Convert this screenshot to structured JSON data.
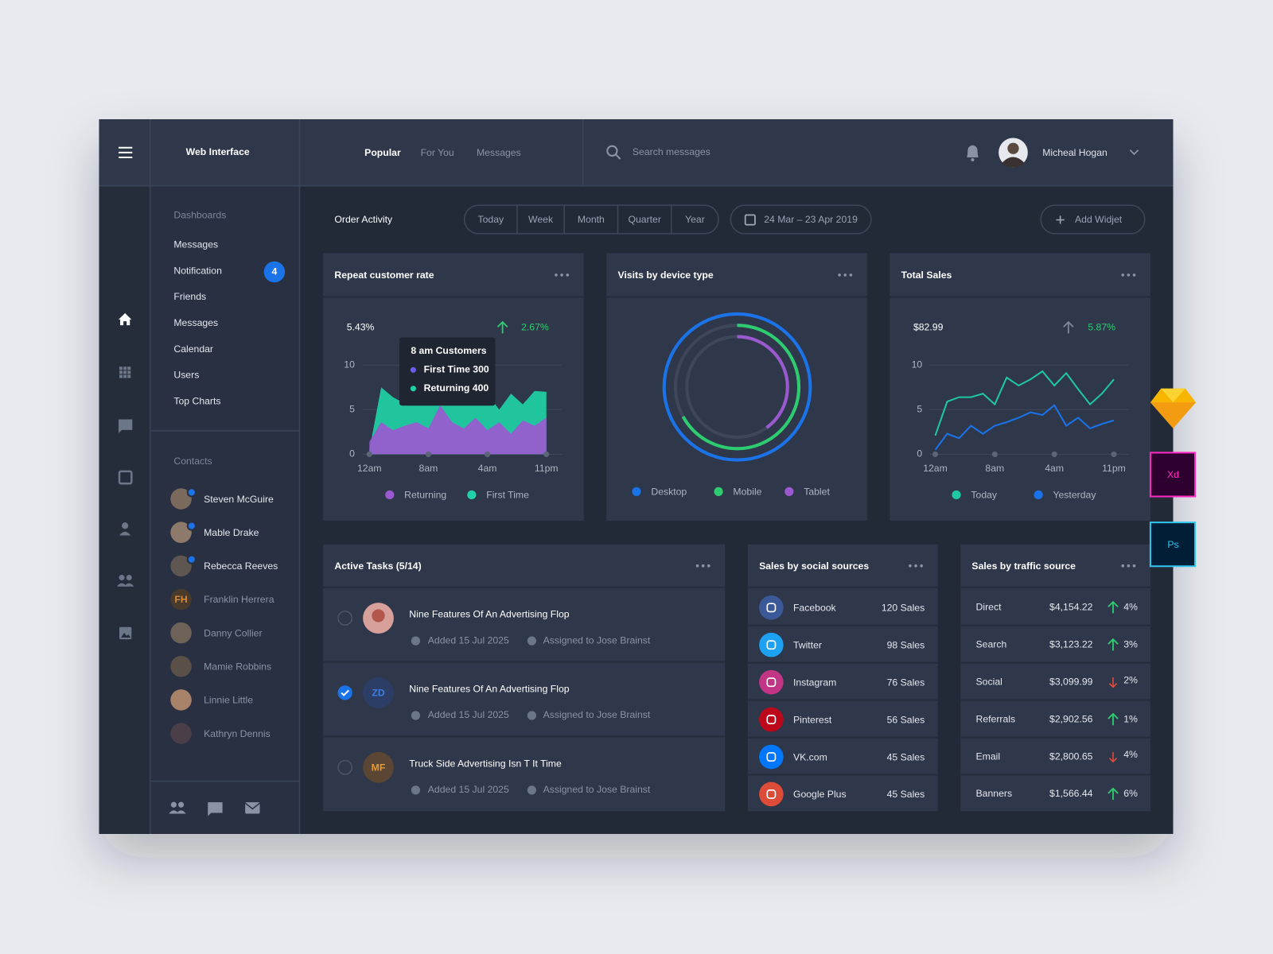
{
  "top_bar": {
    "brand": "Web Interface",
    "tabs": [
      "Popular",
      "For You",
      "Messages"
    ],
    "active_tab": 0,
    "search_placeholder": "Search messages",
    "user_name": "Micheal Hogan"
  },
  "navigation": {
    "section_title": "Dashboards",
    "items": [
      "Messages",
      "Notification",
      "Friends",
      "Messages",
      "Calendar",
      "Users",
      "Top Charts"
    ],
    "badge": {
      "item": 1,
      "count": 4
    }
  },
  "contacts": {
    "title": "Contacts",
    "people": [
      {
        "name": "Steven McGuire",
        "online": true
      },
      {
        "name": "Mable Drake",
        "online": true
      },
      {
        "name": "Rebecca Reeves",
        "online": true
      },
      {
        "name": "Franklin Herrera",
        "online": false,
        "initials": "FH"
      },
      {
        "name": "Danny Collier",
        "online": false
      },
      {
        "name": "Mamie Robbins",
        "online": false
      },
      {
        "name": "Linnie Little",
        "online": false
      },
      {
        "name": "Kathryn Dennis",
        "online": false
      }
    ]
  },
  "header": {
    "title": "Order Activity",
    "ranges": [
      "Today",
      "Week",
      "Month",
      "Quarter",
      "Year"
    ],
    "date_range": "24 Mar – 23 Apr 2019",
    "add_widget": "Add Widjet"
  },
  "repeat_customer_rate": {
    "title": "Repeat customer rate",
    "value": "5.43%",
    "change": "2.67%",
    "tooltip": {
      "title": "8 am Customers",
      "items": [
        {
          "label": "First Time 300",
          "color": "#6c5ce7"
        },
        {
          "label": "Returning 400",
          "color": "#1fd1a5"
        }
      ]
    },
    "chart": {
      "type": "area",
      "categories": [
        "12am",
        null,
        null,
        null,
        null,
        "8am",
        null,
        null,
        null,
        null,
        "4am",
        null,
        null,
        null,
        null,
        "11pm"
      ],
      "series": [
        {
          "name": "Returning",
          "color": "#9b59d0",
          "values": [
            1.4,
            3.6,
            2.7,
            3.2,
            3.6,
            2.9,
            5.5,
            3.6,
            2.9,
            4.1,
            2.7,
            3.6,
            2.3,
            3.8,
            3.2,
            4.1
          ]
        },
        {
          "name": "First Time",
          "color": "#1fd1a5",
          "values": [
            0.5,
            7.5,
            6.4,
            5.7,
            7.5,
            5.5,
            7.3,
            8.2,
            5.9,
            5.6,
            6.8,
            5.0,
            6.8,
            5.6,
            7.1,
            7.0
          ]
        }
      ],
      "ylim": [
        0,
        10
      ],
      "yticks": [
        0,
        5,
        10
      ],
      "grid": true
    }
  },
  "visits_by_device": {
    "title": "Visits by device type",
    "chart": {
      "type": "donut",
      "categories": [
        "Desktop",
        "Mobile",
        "Tablet"
      ],
      "values": [
        100,
        67,
        40
      ],
      "colors": [
        "#1a73e8",
        "#2ecc71",
        "#9b59d0"
      ]
    }
  },
  "total_sales": {
    "title": "Total Sales",
    "value": "$82.99",
    "change": "5.87%",
    "chart": {
      "type": "line",
      "categories": [
        "12am",
        null,
        null,
        null,
        null,
        "8am",
        null,
        null,
        null,
        null,
        "4am",
        null,
        null,
        null,
        null,
        "11pm"
      ],
      "series": [
        {
          "name": "Today",
          "color": "#1fc8a0",
          "values": [
            2.1,
            5.9,
            6.4,
            6.4,
            6.8,
            5.6,
            8.6,
            7.7,
            8.4,
            9.3,
            7.7,
            9.1,
            7.3,
            5.6,
            6.8,
            8.4
          ]
        },
        {
          "name": "Yesterday",
          "color": "#1a73e8",
          "values": [
            0.5,
            2.3,
            1.8,
            3.2,
            2.3,
            3.2,
            3.6,
            4.1,
            4.7,
            4.4,
            5.5,
            3.2,
            4.1,
            2.9,
            3.4,
            3.8
          ]
        }
      ],
      "ylim": [
        0,
        10
      ],
      "yticks": [
        0,
        5,
        10
      ],
      "grid": true
    }
  },
  "active_tasks": {
    "title": "Active Tasks (5/14)",
    "tasks": [
      {
        "title": "Nine Features Of An Advertising Flop",
        "added": "Added 15 Jul 2025",
        "assigned": "Assigned to Jose Brainst",
        "done": false
      },
      {
        "title": "Nine Features Of An Advertising Flop",
        "added": "Added 15 Jul 2025",
        "assigned": "Assigned to Jose Brainst",
        "done": true,
        "initials": "ZD"
      },
      {
        "title": "Truck Side Advertising Isn T It Time",
        "added": "Added 15 Jul 2025",
        "assigned": "Assigned to Jose Brainst",
        "done": false,
        "initials": "MF"
      }
    ]
  },
  "social_sources": {
    "title": "Sales by social sources",
    "rows": [
      {
        "name": "Facebook",
        "sales": "120 Sales",
        "color": "#3b5998"
      },
      {
        "name": "Twitter",
        "sales": "98 Sales",
        "color": "#1da1f2"
      },
      {
        "name": "Instagram",
        "sales": "76 Sales",
        "color": "#c13584"
      },
      {
        "name": "Pinterest",
        "sales": "56 Sales",
        "color": "#bd081c"
      },
      {
        "name": "VK.com",
        "sales": "45 Sales",
        "color": "#0077ff"
      },
      {
        "name": "Google Plus",
        "sales": "45 Sales",
        "color": "#dd4b39"
      }
    ]
  },
  "traffic_sources": {
    "title": "Sales by traffic source",
    "rows": [
      {
        "name": "Direct",
        "amount": "$4,154.22",
        "change": "4%",
        "trend": "up"
      },
      {
        "name": "Search",
        "amount": "$3,123.22",
        "change": "3%",
        "trend": "up"
      },
      {
        "name": "Social",
        "amount": "$3,099.99",
        "change": "2%",
        "trend": "down"
      },
      {
        "name": "Referrals",
        "amount": "$2,902.56",
        "change": "1%",
        "trend": "up"
      },
      {
        "name": "Email",
        "amount": "$2,800.65",
        "change": "4%",
        "trend": "down"
      },
      {
        "name": "Banners",
        "amount": "$1,566.44",
        "change": "6%",
        "trend": "up"
      }
    ]
  },
  "tool_badges": [
    "Xd",
    "Ps"
  ]
}
